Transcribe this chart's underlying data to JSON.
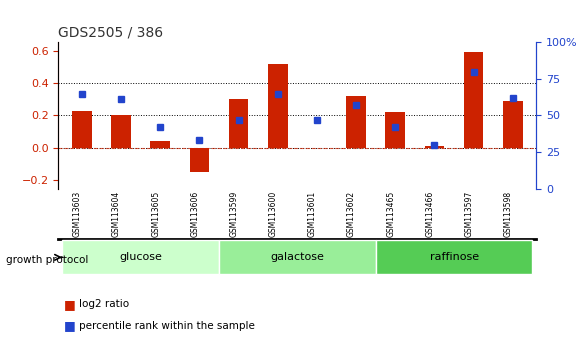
{
  "title": "GDS2505 / 386",
  "samples": [
    "GSM113603",
    "GSM113604",
    "GSM113605",
    "GSM113606",
    "GSM113599",
    "GSM113600",
    "GSM113601",
    "GSM113602",
    "GSM113465",
    "GSM113466",
    "GSM113597",
    "GSM113598"
  ],
  "log2_ratio": [
    0.23,
    0.2,
    0.04,
    -0.15,
    0.3,
    0.52,
    0.0,
    0.32,
    0.22,
    0.01,
    0.59,
    0.29
  ],
  "percentile_rank": [
    65,
    61,
    42,
    33,
    47,
    65,
    47,
    57,
    42,
    30,
    80,
    62
  ],
  "groups": [
    {
      "name": "glucose",
      "start": 0,
      "end": 4,
      "color": "#ccffcc"
    },
    {
      "name": "galactose",
      "start": 4,
      "end": 8,
      "color": "#99ee99"
    },
    {
      "name": "raffinose",
      "start": 8,
      "end": 12,
      "color": "#55cc55"
    }
  ],
  "bar_color": "#cc2200",
  "dot_color": "#2244cc",
  "ylim_left": [
    -0.25,
    0.65
  ],
  "yticks_left": [
    -0.2,
    0.0,
    0.2,
    0.4,
    0.6
  ],
  "yticks_right": [
    0,
    25,
    50,
    75,
    100
  ],
  "hlines": [
    0.0,
    0.2,
    0.4
  ],
  "background_color": "#ffffff",
  "plot_bg_color": "#ffffff",
  "title_color": "#333333",
  "left_axis_color": "#cc2200",
  "right_axis_color": "#2244cc",
  "zero_line_color": "#cc2200",
  "grid_color": "#000000",
  "sample_bg_color": "#cccccc",
  "bar_width": 0.5
}
